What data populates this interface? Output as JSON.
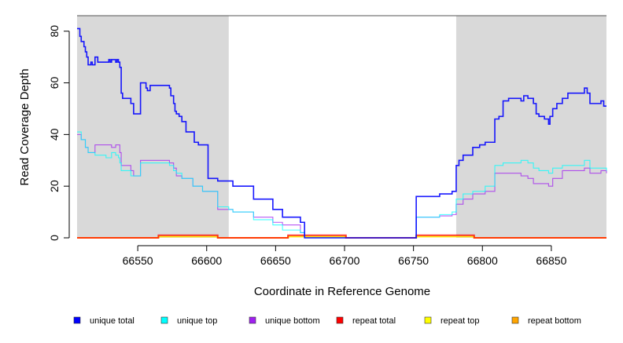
{
  "chart_data": {
    "type": "line",
    "xlabel": "Coordinate in Reference Genome",
    "ylabel": "Read Coverage Depth",
    "xlim": [
      66506,
      66890
    ],
    "ylim": [
      0,
      86
    ],
    "xticks": [
      66550,
      66600,
      66650,
      66700,
      66750,
      66800,
      66850
    ],
    "yticks": [
      0,
      20,
      40,
      60,
      80
    ],
    "shaded_regions": [
      [
        66506,
        66616
      ],
      [
        66781,
        66890
      ]
    ],
    "legend_position": "bottom",
    "series": [
      {
        "name": "unique total",
        "color": "#0000FF",
        "points": [
          [
            66506,
            81
          ],
          [
            66508,
            78
          ],
          [
            66509,
            76
          ],
          [
            66511,
            74
          ],
          [
            66512,
            72
          ],
          [
            66513,
            70
          ],
          [
            66514,
            67
          ],
          [
            66516,
            68
          ],
          [
            66517,
            67
          ],
          [
            66519,
            70
          ],
          [
            66521,
            68
          ],
          [
            66527,
            68
          ],
          [
            66529,
            69
          ],
          [
            66530,
            68
          ],
          [
            66531,
            69
          ],
          [
            66534,
            68
          ],
          [
            66535,
            69
          ],
          [
            66536,
            68
          ],
          [
            66537,
            66
          ],
          [
            66538,
            56
          ],
          [
            66539,
            54
          ],
          [
            66545,
            52
          ],
          [
            66547,
            48
          ],
          [
            66552,
            60
          ],
          [
            66556,
            58
          ],
          [
            66557,
            57
          ],
          [
            66559,
            59
          ],
          [
            66573,
            58
          ],
          [
            66574,
            55
          ],
          [
            66576,
            52
          ],
          [
            66577,
            49
          ],
          [
            66578,
            48
          ],
          [
            66580,
            47
          ],
          [
            66582,
            45
          ],
          [
            66585,
            41
          ],
          [
            66591,
            37
          ],
          [
            66594,
            36
          ],
          [
            66601,
            23
          ],
          [
            66608,
            22
          ],
          [
            66619,
            20
          ],
          [
            66634,
            15
          ],
          [
            66648,
            11
          ],
          [
            66655,
            8
          ],
          [
            66668,
            6
          ],
          [
            66671,
            0
          ],
          [
            66752,
            16
          ],
          [
            66769,
            17
          ],
          [
            66778,
            18
          ],
          [
            66781,
            28
          ],
          [
            66783,
            30
          ],
          [
            66786,
            32
          ],
          [
            66793,
            35
          ],
          [
            66798,
            36
          ],
          [
            66802,
            37
          ],
          [
            66809,
            46
          ],
          [
            66812,
            47
          ],
          [
            66815,
            53
          ],
          [
            66819,
            54
          ],
          [
            66828,
            53
          ],
          [
            66830,
            55
          ],
          [
            66833,
            54
          ],
          [
            66837,
            52
          ],
          [
            66839,
            48
          ],
          [
            66841,
            47
          ],
          [
            66845,
            46
          ],
          [
            66848,
            44
          ],
          [
            66849,
            47
          ],
          [
            66851,
            50
          ],
          [
            66854,
            52
          ],
          [
            66858,
            54
          ],
          [
            66862,
            56
          ],
          [
            66874,
            58
          ],
          [
            66876,
            56
          ],
          [
            66878,
            52
          ],
          [
            66886,
            53
          ],
          [
            66888,
            51
          ],
          [
            66890,
            51
          ]
        ]
      },
      {
        "name": "unique top",
        "color": "#00FFFF",
        "points": [
          [
            66506,
            41
          ],
          [
            66509,
            38
          ],
          [
            66512,
            35
          ],
          [
            66514,
            33
          ],
          [
            66519,
            32
          ],
          [
            66527,
            31
          ],
          [
            66531,
            33
          ],
          [
            66534,
            32
          ],
          [
            66536,
            31
          ],
          [
            66537,
            29
          ],
          [
            66538,
            26
          ],
          [
            66545,
            24
          ],
          [
            66552,
            29
          ],
          [
            66560,
            29
          ],
          [
            66573,
            28
          ],
          [
            66576,
            26
          ],
          [
            66578,
            25
          ],
          [
            66582,
            23
          ],
          [
            66590,
            20
          ],
          [
            66597,
            18
          ],
          [
            66608,
            12
          ],
          [
            66616,
            11
          ],
          [
            66619,
            10
          ],
          [
            66634,
            7
          ],
          [
            66648,
            5
          ],
          [
            66655,
            3
          ],
          [
            66668,
            2
          ],
          [
            66671,
            0
          ],
          [
            66752,
            8
          ],
          [
            66769,
            9
          ],
          [
            66778,
            10
          ],
          [
            66781,
            15
          ],
          [
            66786,
            17
          ],
          [
            66793,
            18
          ],
          [
            66802,
            20
          ],
          [
            66809,
            28
          ],
          [
            66815,
            29
          ],
          [
            66828,
            30
          ],
          [
            66833,
            29
          ],
          [
            66837,
            27
          ],
          [
            66841,
            26
          ],
          [
            66848,
            25
          ],
          [
            66851,
            27
          ],
          [
            66858,
            28
          ],
          [
            66874,
            30
          ],
          [
            66878,
            27
          ],
          [
            66890,
            26
          ]
        ]
      },
      {
        "name": "unique bottom",
        "color": "#A020F0",
        "points": [
          [
            66506,
            40
          ],
          [
            66509,
            38
          ],
          [
            66512,
            35
          ],
          [
            66514,
            33
          ],
          [
            66519,
            36
          ],
          [
            66531,
            35
          ],
          [
            66534,
            36
          ],
          [
            66537,
            33
          ],
          [
            66538,
            28
          ],
          [
            66545,
            26
          ],
          [
            66547,
            24
          ],
          [
            66552,
            30
          ],
          [
            66573,
            29
          ],
          [
            66576,
            27
          ],
          [
            66578,
            24
          ],
          [
            66582,
            23
          ],
          [
            66590,
            20
          ],
          [
            66597,
            18
          ],
          [
            66608,
            11
          ],
          [
            66619,
            10
          ],
          [
            66634,
            8
          ],
          [
            66648,
            6
          ],
          [
            66655,
            5
          ],
          [
            66668,
            2
          ],
          [
            66671,
            0
          ],
          [
            66752,
            8
          ],
          [
            66769,
            8.5
          ],
          [
            66778,
            9
          ],
          [
            66781,
            13
          ],
          [
            66786,
            15
          ],
          [
            66793,
            17
          ],
          [
            66802,
            18
          ],
          [
            66809,
            25
          ],
          [
            66828,
            24
          ],
          [
            66833,
            23
          ],
          [
            66837,
            21
          ],
          [
            66848,
            20
          ],
          [
            66851,
            23
          ],
          [
            66858,
            26
          ],
          [
            66874,
            27
          ],
          [
            66878,
            25
          ],
          [
            66886,
            26
          ],
          [
            66890,
            25
          ]
        ]
      },
      {
        "name": "repeat total",
        "color": "#FF0000",
        "points": [
          [
            66506,
            0
          ],
          [
            66565,
            1
          ],
          [
            66608,
            0
          ],
          [
            66659,
            1
          ],
          [
            66701,
            0
          ],
          [
            66752,
            1
          ],
          [
            66794,
            0
          ],
          [
            66890,
            0
          ]
        ]
      },
      {
        "name": "repeat top",
        "color": "#FFFF00",
        "points": [
          [
            66506,
            0
          ],
          [
            66565,
            0.5
          ],
          [
            66608,
            0
          ],
          [
            66659,
            0.5
          ],
          [
            66701,
            0
          ],
          [
            66752,
            0.5
          ],
          [
            66794,
            0
          ],
          [
            66890,
            0
          ]
        ]
      },
      {
        "name": "repeat bottom",
        "color": "#FFA500",
        "points": [
          [
            66506,
            0
          ],
          [
            66565,
            0.5
          ],
          [
            66608,
            0
          ],
          [
            66659,
            0.5
          ],
          [
            66701,
            0
          ],
          [
            66752,
            0.5
          ],
          [
            66794,
            0
          ],
          [
            66890,
            0
          ]
        ]
      }
    ]
  }
}
